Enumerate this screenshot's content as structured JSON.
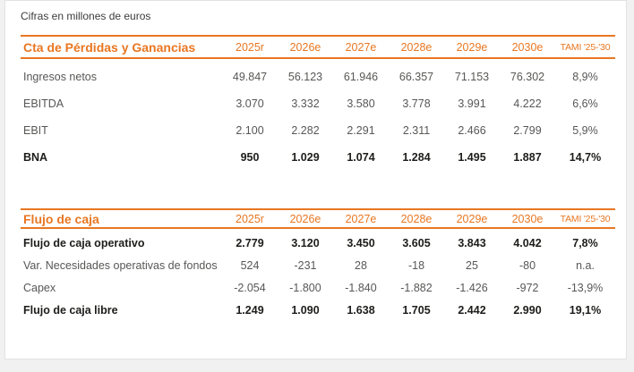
{
  "note": "Cifras en millones de euros",
  "colors": {
    "accent": "#E87722",
    "text": "#575756",
    "text_strong": "#1D1D1B",
    "card_background": "#FFFFFF",
    "page_background": "#F1F1F1"
  },
  "tables": [
    {
      "title": "Cta de Pérdidas y Ganancias",
      "columns": [
        "2025r",
        "2026e",
        "2027e",
        "2028e",
        "2029e",
        "2030e",
        "TAMI '25-'30"
      ],
      "rows": [
        {
          "label": "Ingresos netos",
          "values": [
            "49.847",
            "56.123",
            "61.946",
            "66.357",
            "71.153",
            "76.302",
            "8,9%"
          ]
        },
        {
          "label": "EBITDA",
          "values": [
            "3.070",
            "3.332",
            "3.580",
            "3.778",
            "3.991",
            "4.222",
            "6,6%"
          ]
        },
        {
          "label": "EBIT",
          "values": [
            "2.100",
            "2.282",
            "2.291",
            "2.311",
            "2.466",
            "2.799",
            "5,9%"
          ]
        },
        {
          "label": "BNA",
          "values": [
            "950",
            "1.029",
            "1.074",
            "1.284",
            "1.495",
            "1.887",
            "14,7%"
          ]
        }
      ]
    },
    {
      "title": "Flujo de caja",
      "columns": [
        "2025r",
        "2026e",
        "2027e",
        "2028e",
        "2029e",
        "2030e",
        "TAMI '25-'30"
      ],
      "rows": [
        {
          "label": "Flujo de caja operativo",
          "values": [
            "2.779",
            "3.120",
            "3.450",
            "3.605",
            "3.843",
            "4.042",
            "7,8%"
          ]
        },
        {
          "label": "Var. Necesidades operativas de fondos",
          "values": [
            "524",
            "-231",
            "28",
            "-18",
            "25",
            "-80",
            "n.a."
          ]
        },
        {
          "label": "Capex",
          "values": [
            "-2.054",
            "-1.800",
            "-1.840",
            "-1.882",
            "-1.426",
            "-972",
            "-13,9%"
          ]
        },
        {
          "label": "Flujo de caja libre",
          "values": [
            "1.249",
            "1.090",
            "1.638",
            "1.705",
            "2.442",
            "2.990",
            "19,1%"
          ]
        }
      ]
    }
  ]
}
